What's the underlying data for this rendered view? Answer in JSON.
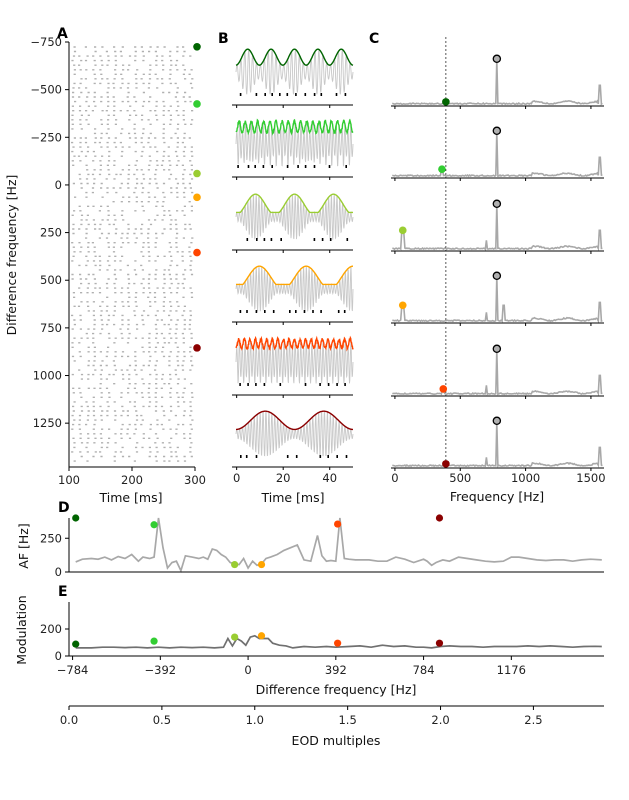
{
  "colors": {
    "grey": "#a8a8a8",
    "lightgrey": "#c8c8c8",
    "raster": "#b0b0b0",
    "dashed": "#111111",
    "series": [
      "#006400",
      "#32cd32",
      "#9acd32",
      "#ffa500",
      "#ff4500",
      "#8b0000"
    ]
  },
  "chart_data": [
    {
      "id": "A",
      "panel_label": "A",
      "type": "scatter",
      "description_kind": "spike raster",
      "xlabel": "Time [ms]",
      "ylabel": "Difference frequency [Hz]",
      "xlim": [
        100,
        300
      ],
      "ylim": [
        1480,
        -750
      ],
      "xticks": [
        100,
        200,
        300
      ],
      "yticks": [
        -750,
        -500,
        -250,
        0,
        250,
        500,
        750,
        1000,
        1250
      ],
      "yticklabels": [
        "−750",
        "−500",
        "−250",
        "0",
        "250",
        "500",
        "750",
        "1000",
        "1250"
      ],
      "markers": [
        {
          "y": -725,
          "color_index": 0
        },
        {
          "y": -425,
          "color_index": 1
        },
        {
          "y": -60,
          "color_index": 2
        },
        {
          "y": 65,
          "color_index": 3
        },
        {
          "y": 355,
          "color_index": 4
        },
        {
          "y": 855,
          "color_index": 5
        }
      ]
    },
    {
      "id": "B",
      "panel_label": "B",
      "type": "line",
      "xlabel": "Time [ms]",
      "xlim": [
        -2,
        50
      ],
      "xticks": [
        0,
        20,
        40
      ],
      "rows": [
        {
          "color_index": 0,
          "beat_cycles": 5,
          "carrier_cycles": 30,
          "envelope_depth": 0.35
        },
        {
          "color_index": 1,
          "beat_cycles": 19,
          "carrier_cycles": 40,
          "envelope_depth": 0.25
        },
        {
          "color_index": 2,
          "beat_cycles": 3,
          "carrier_cycles": 42,
          "envelope_depth": 0.45
        },
        {
          "color_index": 3,
          "beat_cycles": 2.5,
          "carrier_cycles": 42,
          "envelope_depth": 0.5
        },
        {
          "color_index": 4,
          "beat_cycles": 21,
          "carrier_cycles": 42,
          "envelope_depth": 0.2
        },
        {
          "color_index": 5,
          "beat_cycles": 2,
          "carrier_cycles": 40,
          "envelope_depth": 0.4
        }
      ]
    },
    {
      "id": "C",
      "panel_label": "C",
      "type": "line",
      "xlabel": "Frequency [Hz]",
      "xlim": [
        -30,
        1600
      ],
      "xticks": [
        0,
        500,
        1000,
        1500
      ],
      "eod_frequency": 780,
      "dashed_line_x": 390,
      "rows": [
        {
          "color_index": 0,
          "marker_x": 390,
          "marker_y": 0.07
        },
        {
          "color_index": 1,
          "marker_x": 360,
          "marker_y": 0.15
        },
        {
          "color_index": 2,
          "marker_x": 60,
          "marker_y": 0.35
        },
        {
          "color_index": 3,
          "marker_x": 60,
          "marker_y": 0.3
        },
        {
          "color_index": 4,
          "marker_x": 370,
          "marker_y": 0.12
        },
        {
          "color_index": 5,
          "marker_x": 390,
          "marker_y": 0.07
        }
      ]
    },
    {
      "id": "D",
      "panel_label": "D",
      "type": "line",
      "ylabel": "AF [Hz]",
      "xlim": [
        -800,
        1590
      ],
      "ylim": [
        0,
        400
      ],
      "yticks": [
        0,
        250
      ],
      "x": [
        -770,
        -740,
        -700,
        -670,
        -640,
        -610,
        -580,
        -550,
        -520,
        -490,
        -470,
        -440,
        -420,
        -400,
        -380,
        -360,
        -340,
        -320,
        -300,
        -280,
        -250,
        -220,
        -200,
        -180,
        -160,
        -140,
        -120,
        -100,
        -80,
        -60,
        -40,
        -20,
        0,
        20,
        40,
        60,
        80,
        100,
        130,
        160,
        190,
        220,
        250,
        280,
        310,
        330,
        350,
        370,
        392,
        410,
        430,
        450,
        480,
        510,
        540,
        580,
        620,
        660,
        700,
        740,
        784,
        800,
        820,
        840,
        870,
        900,
        940,
        980,
        1020,
        1060,
        1100,
        1140,
        1176,
        1210,
        1250,
        1290,
        1330,
        1370,
        1410,
        1450,
        1490,
        1530,
        1580
      ],
      "y": [
        75,
        95,
        100,
        95,
        110,
        90,
        115,
        100,
        130,
        80,
        110,
        100,
        110,
        400,
        180,
        30,
        70,
        80,
        10,
        120,
        110,
        100,
        110,
        95,
        170,
        160,
        130,
        110,
        70,
        60,
        55,
        100,
        30,
        80,
        50,
        60,
        100,
        110,
        130,
        160,
        180,
        200,
        90,
        80,
        270,
        120,
        80,
        85,
        80,
        400,
        100,
        95,
        90,
        90,
        90,
        80,
        80,
        110,
        95,
        70,
        95,
        80,
        50,
        70,
        90,
        80,
        110,
        100,
        90,
        80,
        75,
        80,
        110,
        110,
        100,
        90,
        85,
        90,
        90,
        80,
        90,
        95,
        90
      ],
      "markers": [
        {
          "x": -770,
          "y": 400,
          "color_index": 0
        },
        {
          "x": -420,
          "y": 350,
          "color_index": 1
        },
        {
          "x": -60,
          "y": 55,
          "color_index": 2
        },
        {
          "x": 60,
          "y": 55,
          "color_index": 3
        },
        {
          "x": 400,
          "y": 355,
          "color_index": 4
        },
        {
          "x": 855,
          "y": 400,
          "color_index": 5
        }
      ]
    },
    {
      "id": "E",
      "panel_label": "E",
      "type": "line",
      "ylabel": "Modulation",
      "xlabel": "Difference frequency [Hz]",
      "xlim": [
        -800,
        1590
      ],
      "ylim": [
        0,
        400
      ],
      "yticks": [
        0,
        200
      ],
      "xticks": [
        -784,
        -392,
        0,
        392,
        784,
        1176
      ],
      "xticklabels": [
        "−784",
        "−392",
        "0",
        "392",
        "784",
        "1176"
      ],
      "x": [
        -770,
        -700,
        -650,
        -600,
        -550,
        -500,
        -450,
        -400,
        -350,
        -300,
        -250,
        -200,
        -150,
        -110,
        -90,
        -70,
        -50,
        -30,
        -10,
        10,
        30,
        50,
        70,
        90,
        110,
        140,
        170,
        200,
        250,
        300,
        350,
        392,
        450,
        500,
        550,
        600,
        650,
        700,
        750,
        784,
        820,
        860,
        900,
        950,
        1000,
        1050,
        1100,
        1150,
        1200,
        1250,
        1300,
        1350,
        1400,
        1450,
        1500,
        1550,
        1580
      ],
      "y": [
        60,
        60,
        65,
        65,
        62,
        65,
        60,
        65,
        60,
        65,
        62,
        65,
        60,
        65,
        130,
        75,
        130,
        110,
        80,
        140,
        150,
        130,
        130,
        130,
        95,
        80,
        75,
        60,
        70,
        65,
        70,
        65,
        70,
        75,
        65,
        80,
        70,
        75,
        65,
        65,
        60,
        70,
        75,
        70,
        70,
        65,
        70,
        70,
        70,
        75,
        70,
        75,
        70,
        65,
        70,
        72,
        70
      ],
      "markers": [
        {
          "x": -770,
          "y": 88,
          "color_index": 0
        },
        {
          "x": -420,
          "y": 110,
          "color_index": 1
        },
        {
          "x": -60,
          "y": 140,
          "color_index": 2
        },
        {
          "x": 60,
          "y": 150,
          "color_index": 3
        },
        {
          "x": 400,
          "y": 95,
          "color_index": 4
        },
        {
          "x": 855,
          "y": 95,
          "color_index": 5
        }
      ]
    },
    {
      "id": "F",
      "xlabel": "EOD multiples",
      "xlim": [
        0.0,
        2.88
      ],
      "xticks": [
        0.0,
        0.5,
        1.0,
        1.5,
        2.0,
        2.5
      ],
      "xticklabels": [
        "0.0",
        "0.5",
        "1.0",
        "1.5",
        "2.0",
        "2.5"
      ]
    }
  ]
}
